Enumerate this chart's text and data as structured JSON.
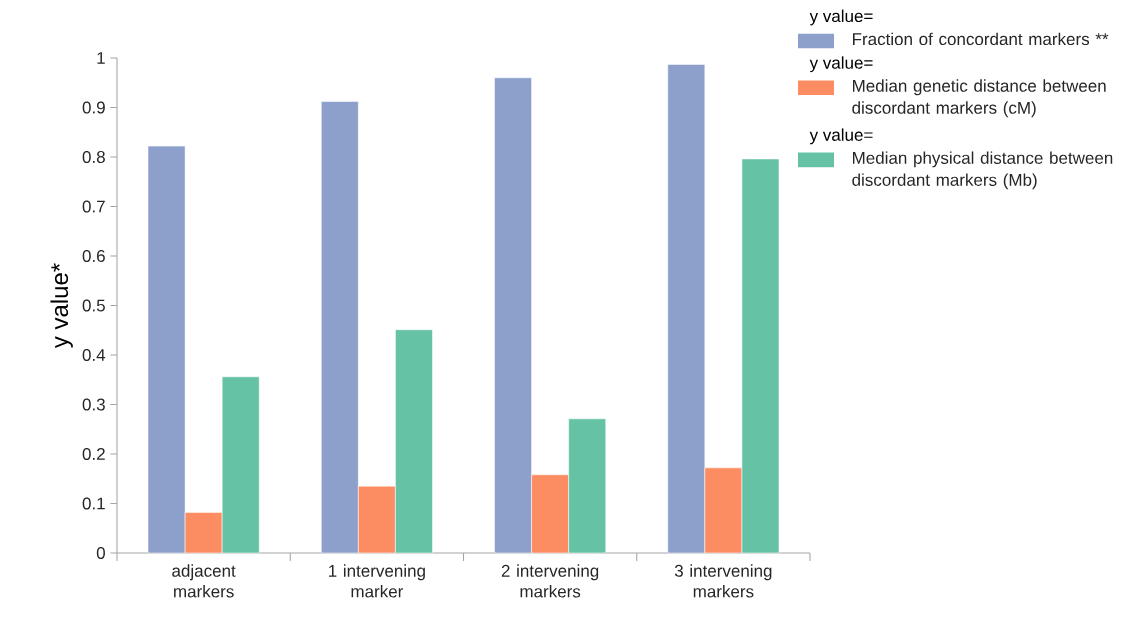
{
  "chart_data": {
    "type": "bar",
    "ylabel": "y value*",
    "categories": [
      "adjacent markers",
      "1 intervening marker",
      "2 intervening markers",
      "3 intervening markers"
    ],
    "series": [
      {
        "name": "Fraction of concordant markers **",
        "color": "#8da0cb",
        "values": [
          0.822,
          0.912,
          0.96,
          0.987
        ]
      },
      {
        "name": "Median genetic distance between discordant markers (cM)",
        "color": "#fc8d62",
        "values": [
          0.082,
          0.135,
          0.158,
          0.172
        ]
      },
      {
        "name": "Median physical distance between discordant markers (Mb)",
        "color": "#66c2a5",
        "values": [
          0.356,
          0.451,
          0.271,
          0.796
        ]
      }
    ],
    "annotations": [
      "y value=",
      "y value=",
      "y value="
    ],
    "ylim": [
      0,
      1
    ],
    "yticks": [
      0,
      0.1,
      0.2,
      0.3,
      0.4,
      0.5,
      0.6,
      0.7,
      0.8,
      0.9,
      1
    ],
    "grid": false,
    "legend": "right"
  }
}
